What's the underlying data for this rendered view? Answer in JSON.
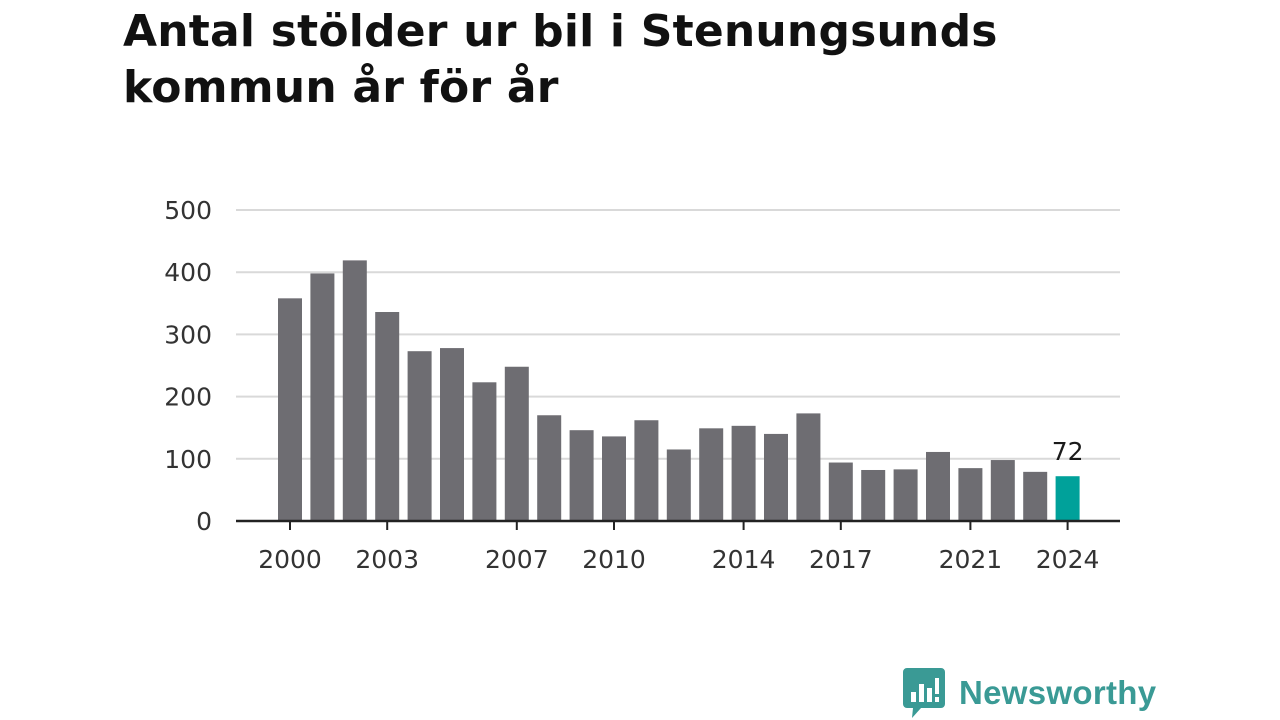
{
  "title": "Antal stölder ur bil i Stenungsunds kommun år för år",
  "brand": {
    "name": "Newsworthy",
    "icon": "newsworthy-logo-icon",
    "color": "#3a9a95"
  },
  "colors": {
    "bar": "#6e6d72",
    "highlight": "#00a19a",
    "grid": "#d9d9d9",
    "axis": "#222222"
  },
  "chart_data": {
    "type": "bar",
    "title": "Antal stölder ur bil i Stenungsunds kommun år för år",
    "xlabel": "",
    "ylabel": "",
    "ylim": [
      0,
      500
    ],
    "yticks": [
      0,
      100,
      200,
      300,
      400,
      500
    ],
    "grid": true,
    "categories": [
      2000,
      2001,
      2002,
      2003,
      2004,
      2005,
      2006,
      2007,
      2008,
      2009,
      2010,
      2011,
      2012,
      2013,
      2014,
      2015,
      2016,
      2017,
      2018,
      2019,
      2020,
      2021,
      2022,
      2023,
      2024
    ],
    "xtick_labels": [
      2000,
      2003,
      2007,
      2010,
      2014,
      2017,
      2021,
      2024
    ],
    "values": [
      358,
      398,
      419,
      336,
      273,
      278,
      223,
      248,
      170,
      146,
      136,
      162,
      115,
      149,
      153,
      140,
      173,
      94,
      82,
      83,
      111,
      85,
      98,
      79,
      72
    ],
    "highlight": {
      "category": 2024,
      "value": 72,
      "label": "72"
    }
  }
}
